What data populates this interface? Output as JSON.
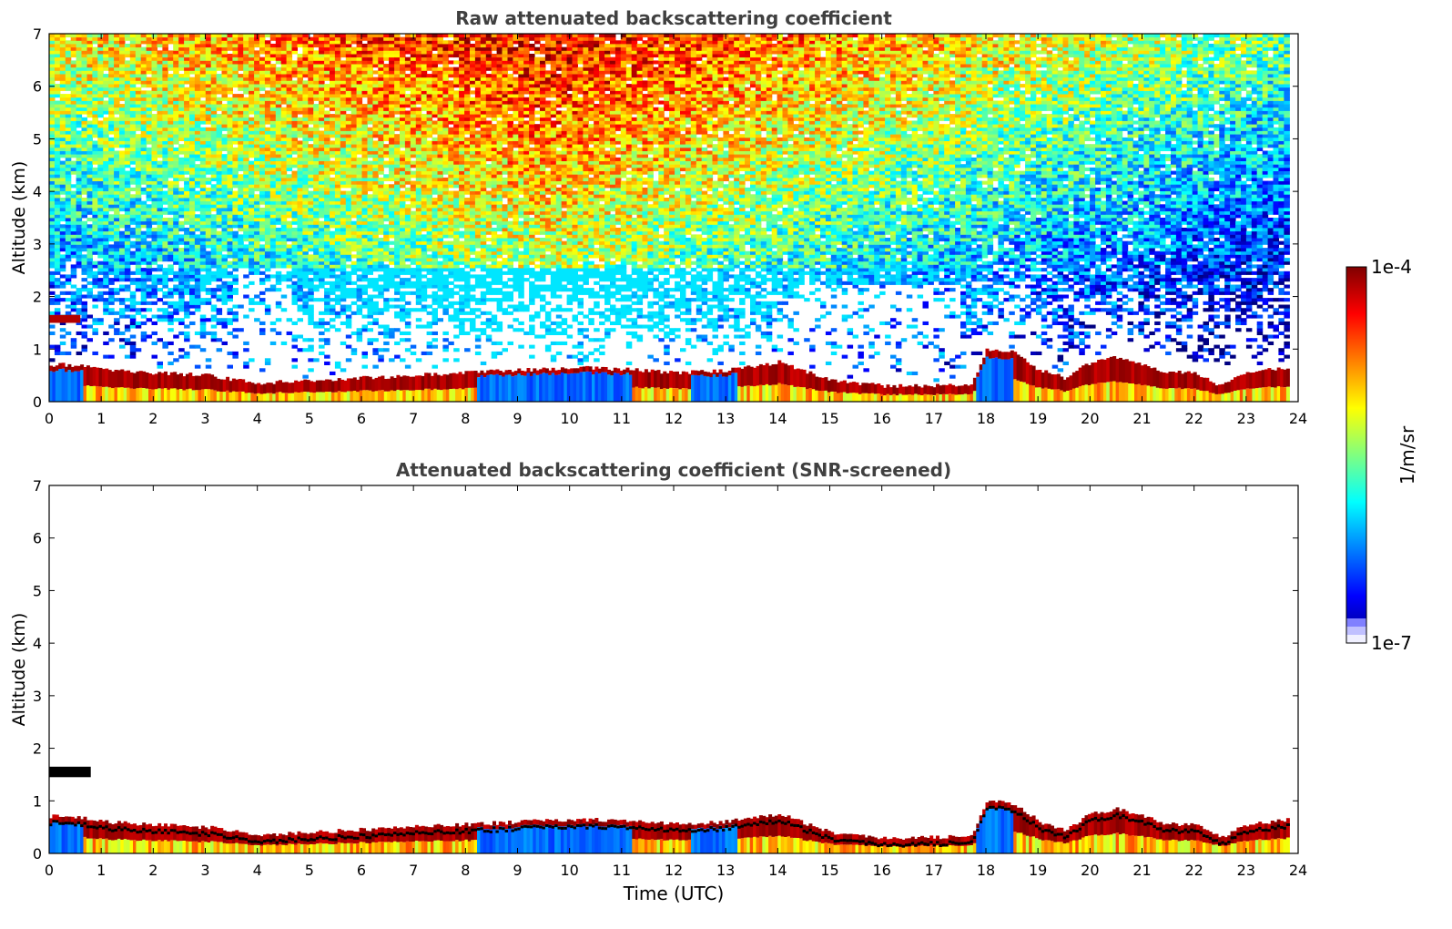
{
  "chart_data": [
    {
      "type": "heatmap",
      "title": "Raw attenuated backscattering coefficient",
      "xlabel": "",
      "ylabel": "Altitude (km)",
      "xlim": [
        0,
        24
      ],
      "ylim": [
        0,
        7
      ],
      "x_ticks": [
        "0",
        "1",
        "2",
        "3",
        "4",
        "5",
        "6",
        "7",
        "8",
        "9",
        "10",
        "11",
        "12",
        "13",
        "14",
        "15",
        "16",
        "17",
        "18",
        "19",
        "20",
        "21",
        "22",
        "23",
        "24"
      ],
      "y_ticks": [
        "0",
        "1",
        "2",
        "3",
        "4",
        "5",
        "6",
        "7"
      ],
      "data_time_range": [
        0,
        23.83
      ],
      "boundary_layer_top_km": {
        "time": [
          0.55,
          1,
          2,
          3,
          4,
          5,
          6,
          7,
          8,
          9,
          10,
          11,
          12,
          13,
          14,
          15,
          16,
          17,
          17.7,
          18,
          18.5,
          19,
          19.5,
          20,
          20.5,
          21,
          21.5,
          22,
          22.5,
          23,
          23.8
        ],
        "altitude": [
          0.7,
          0.6,
          0.55,
          0.5,
          0.35,
          0.4,
          0.45,
          0.5,
          0.55,
          0.6,
          0.65,
          0.62,
          0.55,
          0.6,
          0.75,
          0.4,
          0.3,
          0.3,
          0.35,
          1.0,
          0.95,
          0.6,
          0.45,
          0.75,
          0.85,
          0.7,
          0.55,
          0.55,
          0.3,
          0.55,
          0.65
        ]
      },
      "elevated_layer": {
        "time": [
          0,
          0.6
        ],
        "altitude_km": [
          1.5,
          1.65
        ]
      },
      "noise_intensity_peak_time": 9.5
    },
    {
      "type": "heatmap",
      "title": "Attenuated backscattering coefficient (SNR-screened)",
      "xlabel": "Time (UTC)",
      "ylabel": "Altitude (km)",
      "xlim": [
        0,
        24
      ],
      "ylim": [
        0,
        7
      ],
      "x_ticks": [
        "0",
        "1",
        "2",
        "3",
        "4",
        "5",
        "6",
        "7",
        "8",
        "9",
        "10",
        "11",
        "12",
        "13",
        "14",
        "15",
        "16",
        "17",
        "18",
        "19",
        "20",
        "21",
        "22",
        "23",
        "24"
      ],
      "y_ticks": [
        "0",
        "1",
        "2",
        "3",
        "4",
        "5",
        "6",
        "7"
      ],
      "data_time_range": [
        0,
        23.83
      ],
      "boundary_layer_top_km": {
        "time": [
          0.55,
          1,
          2,
          3,
          4,
          5,
          6,
          7,
          8,
          9,
          10,
          11,
          12,
          13,
          14,
          15,
          16,
          17,
          17.7,
          18,
          18.5,
          19,
          19.5,
          20,
          20.5,
          21,
          21.5,
          22,
          22.5,
          23,
          23.8
        ],
        "altitude": [
          0.7,
          0.6,
          0.55,
          0.5,
          0.35,
          0.4,
          0.45,
          0.5,
          0.55,
          0.6,
          0.65,
          0.62,
          0.55,
          0.6,
          0.75,
          0.4,
          0.3,
          0.3,
          0.35,
          1.0,
          0.95,
          0.6,
          0.45,
          0.75,
          0.85,
          0.7,
          0.55,
          0.55,
          0.3,
          0.55,
          0.65
        ]
      },
      "elevated_layer": {
        "time": [
          0,
          0.8
        ],
        "altitude_km": [
          1.45,
          1.65
        ]
      }
    }
  ],
  "colorbar": {
    "label": "1/m/sr",
    "max_label": "1e-4",
    "min_label": "1e-7",
    "colormap": [
      "#000080",
      "#0000ff",
      "#0080ff",
      "#00ffff",
      "#80ff80",
      "#ffff00",
      "#ff8000",
      "#ff0000",
      "#800000"
    ],
    "low_end_colors": [
      "#f0f0ff",
      "#c0c0ff",
      "#8080ff"
    ]
  }
}
